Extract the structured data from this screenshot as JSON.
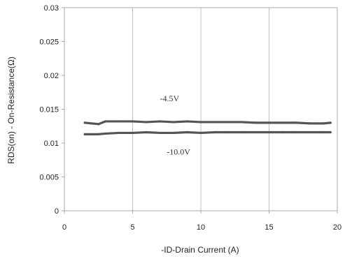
{
  "chart_data": {
    "type": "line",
    "title": "",
    "xlabel": "-ID-Drain Current (A)",
    "ylabel": "RDS(on) - On-Resistance(Ω)",
    "xlim": [
      0,
      20
    ],
    "ylim": [
      0,
      0.03
    ],
    "x_ticks": [
      0,
      5,
      10,
      15,
      20
    ],
    "x_tick_labels": [
      "0",
      "5",
      "10",
      "15",
      "20"
    ],
    "y_ticks": [
      0,
      0.005,
      0.01,
      0.015,
      0.02,
      0.025,
      0.03
    ],
    "y_tick_labels": [
      "0",
      "0.005",
      "0.01",
      "0.015",
      "0.02",
      "0.025",
      "0.03"
    ],
    "grid": "vertical",
    "legend": "none",
    "series": [
      {
        "name": "-4.5V",
        "color": "#555555",
        "x": [
          1.5,
          2.5,
          3.0,
          4.0,
          5.0,
          6.0,
          7.0,
          8.0,
          9.0,
          10.0,
          11.0,
          12.0,
          13.0,
          14.0,
          15.0,
          16.0,
          17.0,
          18.0,
          19.0,
          19.5
        ],
        "values": [
          0.013,
          0.0128,
          0.0132,
          0.0132,
          0.0132,
          0.0131,
          0.0132,
          0.0131,
          0.0132,
          0.0131,
          0.0131,
          0.0131,
          0.0131,
          0.013,
          0.013,
          0.013,
          0.013,
          0.0129,
          0.0129,
          0.013
        ]
      },
      {
        "name": "-10.0V",
        "color": "#555555",
        "x": [
          1.5,
          2.5,
          3.0,
          4.0,
          5.0,
          6.0,
          7.0,
          8.0,
          9.0,
          10.0,
          11.0,
          12.0,
          13.0,
          14.0,
          15.0,
          16.0,
          17.0,
          18.0,
          19.0,
          19.5
        ],
        "values": [
          0.0113,
          0.0113,
          0.0114,
          0.0115,
          0.0115,
          0.0116,
          0.0115,
          0.0115,
          0.0116,
          0.0115,
          0.0116,
          0.0116,
          0.0116,
          0.0116,
          0.0116,
          0.0116,
          0.0116,
          0.0116,
          0.0116,
          0.0116
        ]
      }
    ],
    "annotations": [
      {
        "text": "-4.5V",
        "x": 7.0,
        "y": 0.0162
      },
      {
        "text": "-10.0V",
        "x": 7.5,
        "y": 0.0083
      }
    ]
  }
}
